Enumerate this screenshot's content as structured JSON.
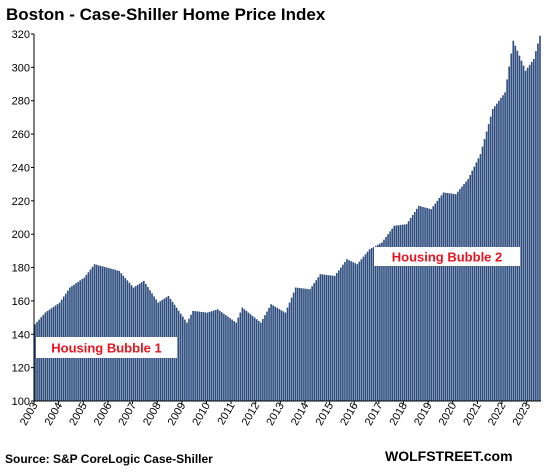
{
  "chart_data": {
    "type": "bar",
    "title": "Boston - Case-Shiller Home Price Index",
    "xlabel": "",
    "ylabel": "",
    "ylim": [
      100,
      320
    ],
    "y_ticks": [
      100,
      120,
      140,
      160,
      180,
      200,
      220,
      240,
      260,
      280,
      300,
      320
    ],
    "x_ticks": [
      "2003",
      "2004",
      "2005",
      "2006",
      "2007",
      "2008",
      "2009",
      "2010",
      "2011",
      "2012",
      "2013",
      "2014",
      "2015",
      "2016",
      "2017",
      "2018",
      "2019",
      "2020",
      "2021",
      "2022",
      "2023"
    ],
    "grid": false,
    "bar_color": "#2e4d7e",
    "frequency": "monthly",
    "start": "2003-01",
    "end": "2023-07",
    "anchors": [
      [
        "2003-01",
        146
      ],
      [
        "2003-06",
        153
      ],
      [
        "2004-01",
        159
      ],
      [
        "2004-06",
        168
      ],
      [
        "2005-01",
        174
      ],
      [
        "2005-06",
        182
      ],
      [
        "2005-12",
        180
      ],
      [
        "2006-06",
        178
      ],
      [
        "2007-01",
        168
      ],
      [
        "2007-06",
        172
      ],
      [
        "2008-01",
        159
      ],
      [
        "2008-06",
        163
      ],
      [
        "2009-03",
        147
      ],
      [
        "2009-06",
        154
      ],
      [
        "2010-01",
        153
      ],
      [
        "2010-06",
        155
      ],
      [
        "2011-03",
        147
      ],
      [
        "2011-06",
        156
      ],
      [
        "2012-03",
        147
      ],
      [
        "2012-08",
        158
      ],
      [
        "2013-03",
        153
      ],
      [
        "2013-08",
        168
      ],
      [
        "2014-03",
        167
      ],
      [
        "2014-08",
        176
      ],
      [
        "2015-03",
        175
      ],
      [
        "2015-09",
        185
      ],
      [
        "2016-02",
        182
      ],
      [
        "2016-08",
        191
      ],
      [
        "2017-02",
        195
      ],
      [
        "2017-08",
        205
      ],
      [
        "2018-02",
        206
      ],
      [
        "2018-08",
        217
      ],
      [
        "2019-02",
        215
      ],
      [
        "2019-08",
        225
      ],
      [
        "2020-02",
        224
      ],
      [
        "2020-08",
        233
      ],
      [
        "2021-02",
        248
      ],
      [
        "2021-08",
        275
      ],
      [
        "2022-02",
        285
      ],
      [
        "2022-06",
        316
      ],
      [
        "2022-12",
        298
      ],
      [
        "2023-04",
        305
      ],
      [
        "2023-07",
        319
      ]
    ],
    "annotations": [
      {
        "text": "Housing Bubble 1"
      },
      {
        "text": "Housing Bubble 2"
      }
    ]
  },
  "source": "Source: S&P CoreLogic Case-Shiller",
  "watermark": "WOLFSTREET.com"
}
